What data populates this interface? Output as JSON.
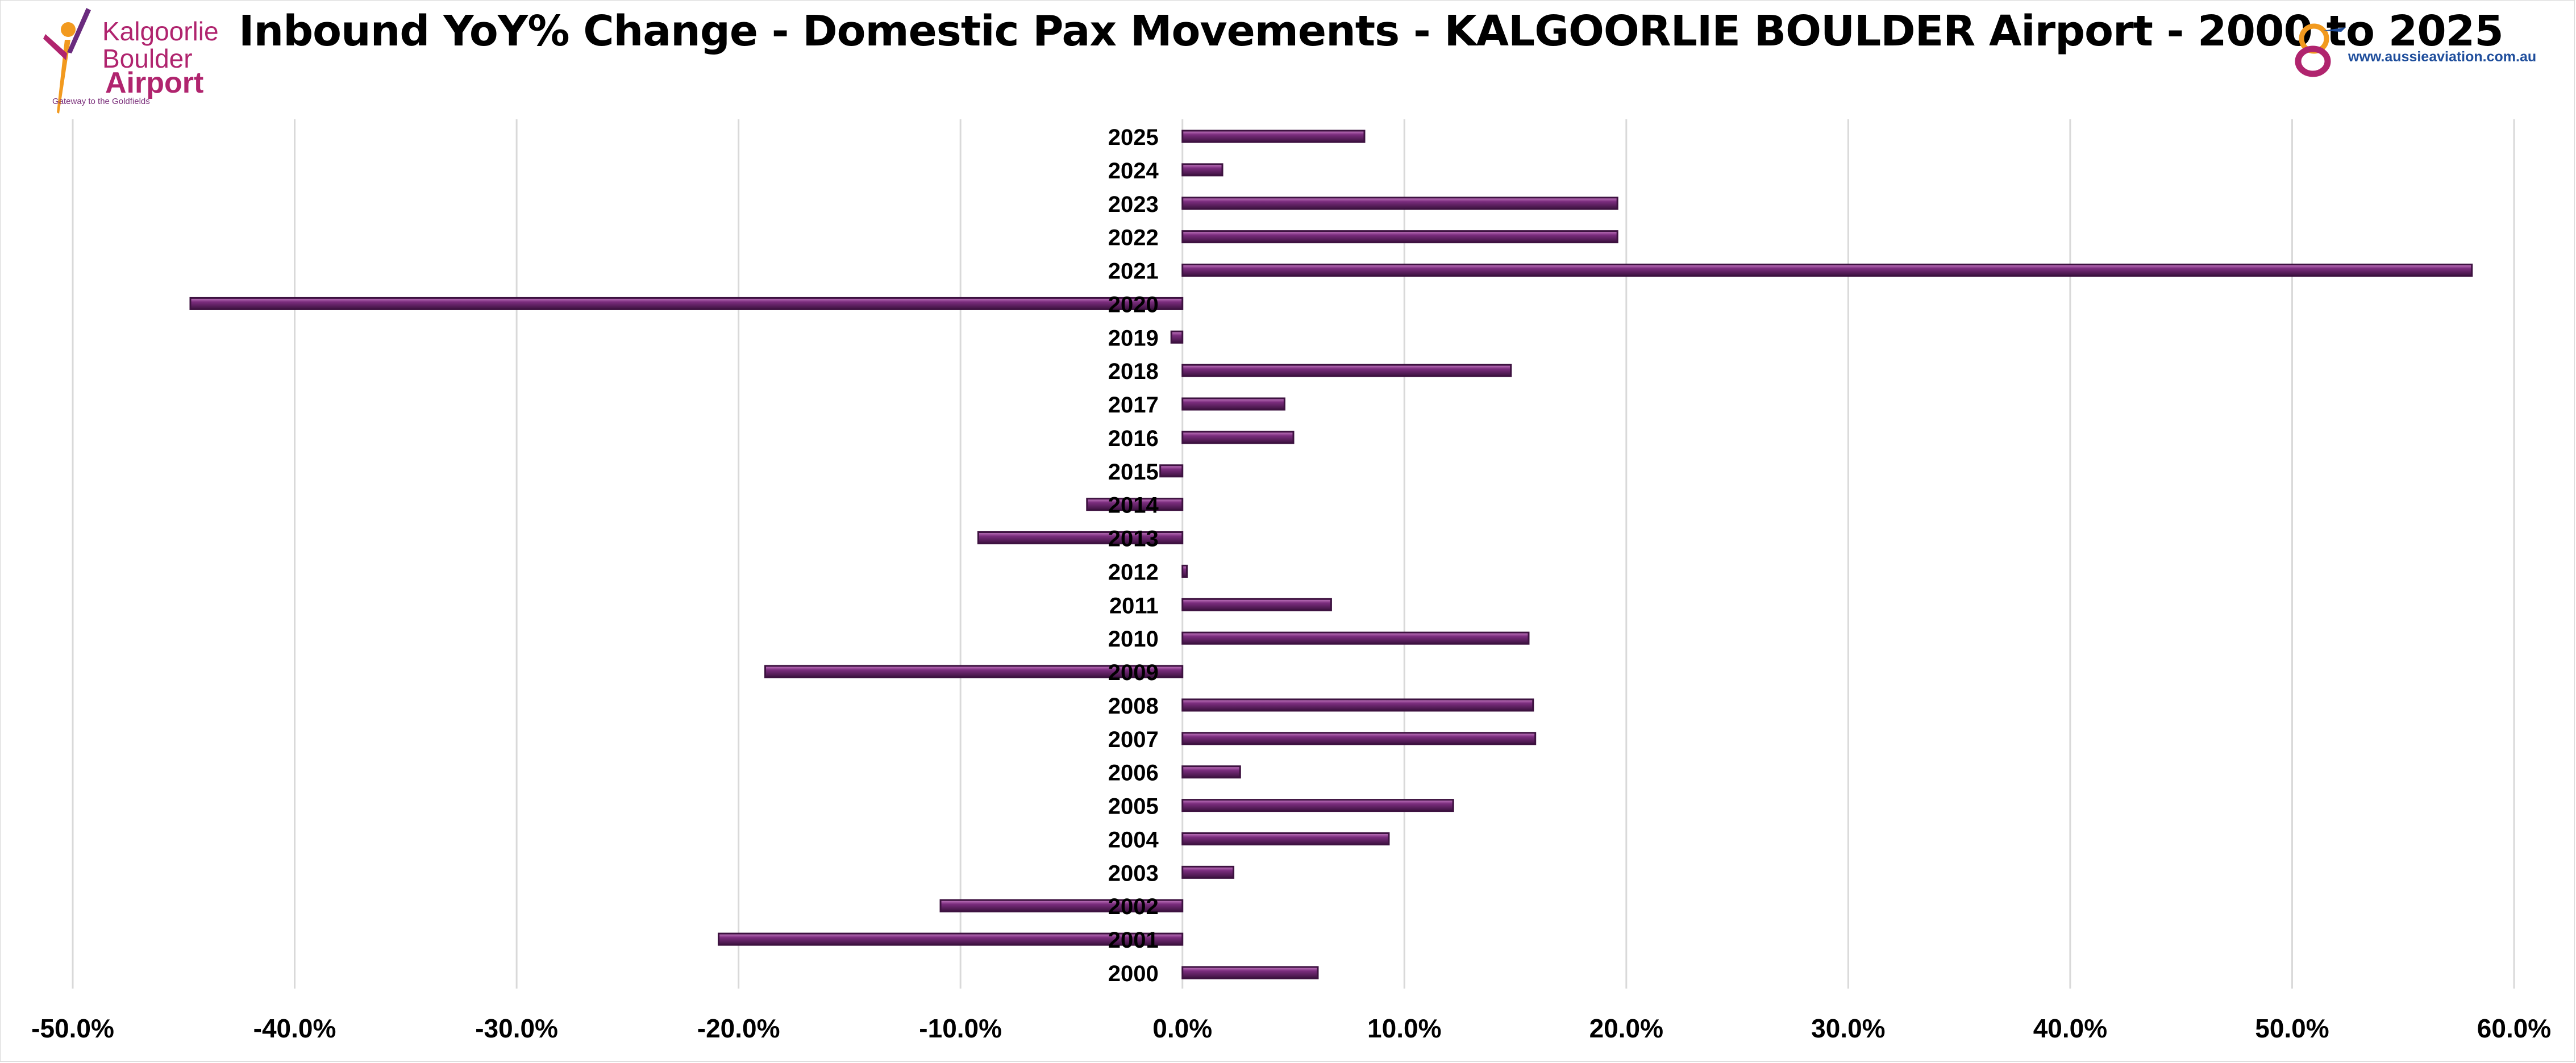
{
  "header": {
    "title": "Inbound YoY% Change - Domestic Pax Movements - KALGOORLIE BOULDER Airport - 2000 to 2025"
  },
  "logos": {
    "left": {
      "line1": "Kalgoorlie",
      "line2": "Boulder",
      "line3": "Airport",
      "tagline": "Gateway to the Goldfields"
    },
    "right": {
      "url": "www.aussieaviation.com.au"
    }
  },
  "colors": {
    "bar_fill": "#7b2d7e",
    "bar_highlight": "#c77ec4",
    "bar_edge": "#3d1240",
    "grid": "#d9d9d9",
    "text": "#000000",
    "brand_magenta": "#b0246e",
    "brand_blue": "#1f4e9c",
    "brand_orange": "#f29a1f"
  },
  "chart_data": {
    "type": "bar",
    "orientation": "horizontal",
    "title": "Inbound YoY% Change - Domestic Pax Movements - KALGOORLIE BOULDER Airport - 2000 to 2025",
    "categories": [
      "2025",
      "2024",
      "2023",
      "2022",
      "2021",
      "2020",
      "2019",
      "2018",
      "2017",
      "2016",
      "2015",
      "2014",
      "2013",
      "2012",
      "2011",
      "2010",
      "2009",
      "2008",
      "2007",
      "2006",
      "2005",
      "2004",
      "2003",
      "2002",
      "2001",
      "2000"
    ],
    "values": [
      8.2,
      1.8,
      19.6,
      19.6,
      58.1,
      -44.7,
      -0.5,
      14.8,
      4.6,
      5.0,
      -1.0,
      -4.3,
      -9.2,
      0.2,
      6.7,
      15.6,
      -18.8,
      15.8,
      15.9,
      2.6,
      12.2,
      9.3,
      2.3,
      -10.9,
      -20.9,
      6.1
    ],
    "xlim": [
      -50,
      60
    ],
    "xticks": [
      "-50.0%",
      "-40.0%",
      "-30.0%",
      "-20.0%",
      "-10.0%",
      "0.0%",
      "10.0%",
      "20.0%",
      "30.0%",
      "40.0%",
      "50.0%",
      "60.0%"
    ],
    "xlabel": "",
    "ylabel": "",
    "grid": "vertical"
  }
}
